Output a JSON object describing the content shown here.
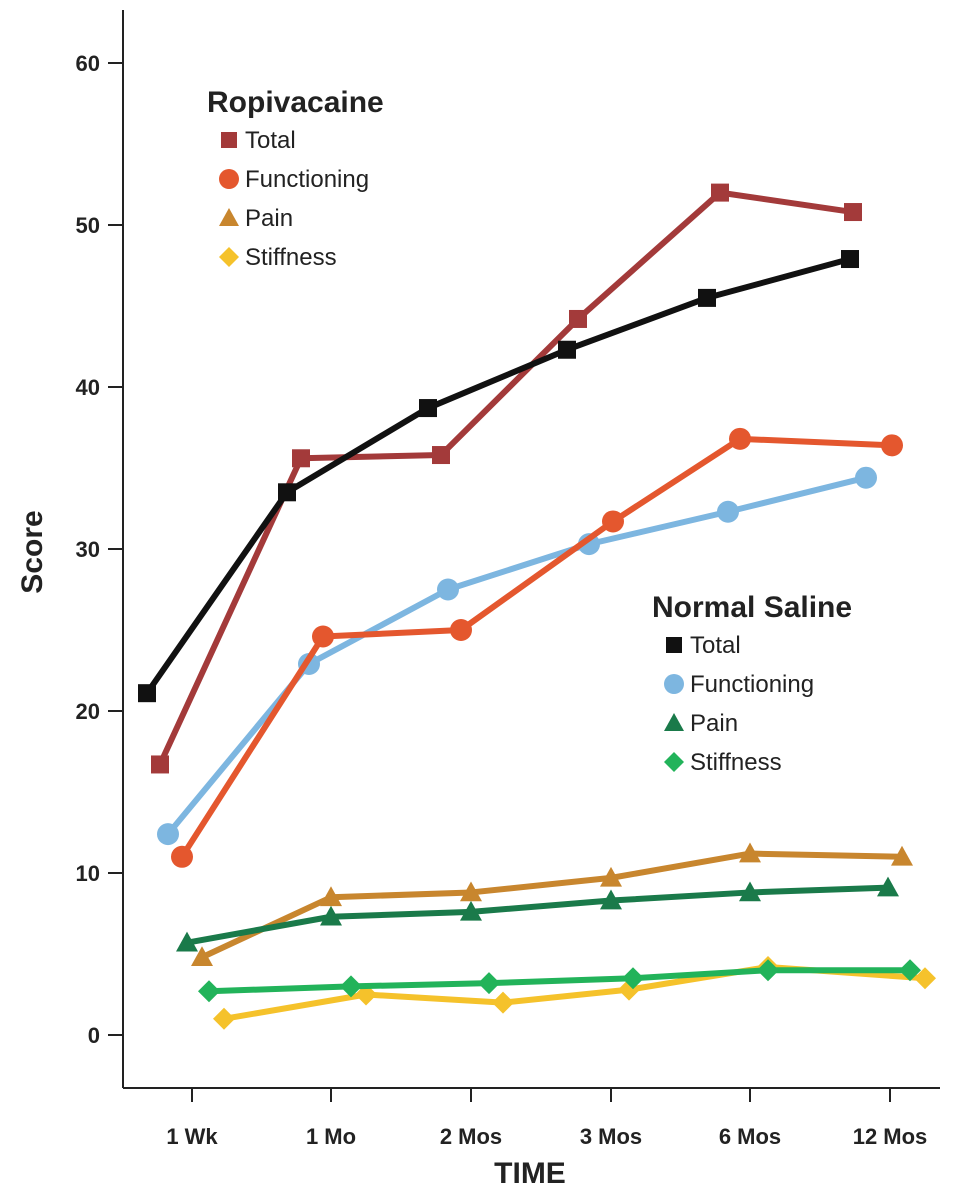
{
  "chart_data": {
    "type": "line",
    "title": "",
    "xlabel": "TIME",
    "ylabel": "Score",
    "categories": [
      "1 Wk",
      "1 Mo",
      "2 Mos",
      "3 Mos",
      "6 Mos",
      "12 Mos"
    ],
    "yticks": [
      0,
      10,
      20,
      30,
      40,
      50,
      60
    ],
    "ylim": [
      -2,
      65
    ],
    "grid": false,
    "groups": [
      {
        "title": "Ropivacaine",
        "legend_position": "top-left",
        "series": [
          {
            "name": "Total",
            "marker": "square",
            "color": "#a33a3a",
            "values": [
              16.7,
              35.6,
              35.8,
              44.2,
              52,
              50.8
            ]
          },
          {
            "name": "Functioning",
            "marker": "circle",
            "color": "#e4572e",
            "values": [
              11,
              24.6,
              25,
              31.7,
              36.8,
              36.4
            ]
          },
          {
            "name": "Pain",
            "marker": "triangle",
            "color": "#c8862e",
            "values": [
              4.8,
              8.5,
              8.8,
              9.7,
              11.2,
              11
            ]
          },
          {
            "name": "Stiffness",
            "marker": "diamond",
            "color": "#f5c22b",
            "values": [
              1,
              2.5,
              2,
              2.8,
              4.2,
              3.5
            ]
          }
        ]
      },
      {
        "title": "Normal Saline",
        "legend_position": "center-right",
        "series": [
          {
            "name": "Total",
            "marker": "square",
            "color": "#111111",
            "values": [
              21.1,
              33.5,
              38.7,
              42.3,
              45.5,
              47.9
            ]
          },
          {
            "name": "Functioning",
            "marker": "circle",
            "color": "#7db6e0",
            "values": [
              12.4,
              22.9,
              27.5,
              30.3,
              32.3,
              34.4
            ]
          },
          {
            "name": "Pain",
            "marker": "triangle",
            "color": "#1a7a4a",
            "values": [
              5.7,
              7.3,
              7.6,
              8.3,
              8.8,
              9.1
            ]
          },
          {
            "name": "Stiffness",
            "marker": "diamond",
            "color": "#22b35a",
            "values": [
              2.7,
              3,
              3.2,
              3.5,
              4,
              4
            ]
          }
        ]
      }
    ]
  }
}
